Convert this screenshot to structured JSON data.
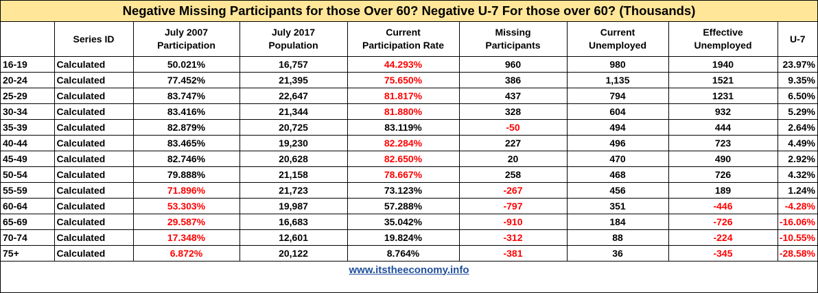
{
  "title": "Negative Missing Participants for those Over 60?  Negative U-7 For those over 60? (Thousands)",
  "colors": {
    "title_bg": "#ffe699",
    "negative": "#ff0000",
    "link": "#1f4e9c"
  },
  "headers": [
    {
      "l1": "",
      "l2": ""
    },
    {
      "l1": "Series ID",
      "l2": ""
    },
    {
      "l1": "July 2007",
      "l2": "Participation"
    },
    {
      "l1": "July 2017",
      "l2": "Population"
    },
    {
      "l1": "Current",
      "l2": "Participation Rate"
    },
    {
      "l1": "Missing",
      "l2": "Participants"
    },
    {
      "l1": "Current",
      "l2": "Unemployed"
    },
    {
      "l1": "Effective",
      "l2": "Unemployed"
    },
    {
      "l1": "U-7",
      "l2": ""
    }
  ],
  "rows": [
    {
      "age": "16-19",
      "series": "Calculated",
      "part2007": "50.021%",
      "pop2017": "16,757",
      "rate": "44.293%",
      "missing": "960",
      "unemp": "980",
      "eff": "1940",
      "u7": "23.97%",
      "red": [
        "rate"
      ]
    },
    {
      "age": "20-24",
      "series": "Calculated",
      "part2007": "77.452%",
      "pop2017": "21,395",
      "rate": "75.650%",
      "missing": "386",
      "unemp": "1,135",
      "eff": "1521",
      "u7": "9.35%",
      "red": [
        "rate"
      ]
    },
    {
      "age": "25-29",
      "series": "Calculated",
      "part2007": "83.747%",
      "pop2017": "22,647",
      "rate": "81.817%",
      "missing": "437",
      "unemp": "794",
      "eff": "1231",
      "u7": "6.50%",
      "red": [
        "rate"
      ]
    },
    {
      "age": "30-34",
      "series": "Calculated",
      "part2007": "83.416%",
      "pop2017": "21,344",
      "rate": "81.880%",
      "missing": "328",
      "unemp": "604",
      "eff": "932",
      "u7": "5.29%",
      "red": [
        "rate"
      ]
    },
    {
      "age": "35-39",
      "series": "Calculated",
      "part2007": "82.879%",
      "pop2017": "20,725",
      "rate": "83.119%",
      "missing": "-50",
      "unemp": "494",
      "eff": "444",
      "u7": "2.64%",
      "red": [
        "missing"
      ]
    },
    {
      "age": "40-44",
      "series": "Calculated",
      "part2007": "83.465%",
      "pop2017": "19,230",
      "rate": "82.284%",
      "missing": "227",
      "unemp": "496",
      "eff": "723",
      "u7": "4.49%",
      "red": [
        "rate"
      ]
    },
    {
      "age": "45-49",
      "series": "Calculated",
      "part2007": "82.746%",
      "pop2017": "20,628",
      "rate": "82.650%",
      "missing": "20",
      "unemp": "470",
      "eff": "490",
      "u7": "2.92%",
      "red": [
        "rate"
      ]
    },
    {
      "age": "50-54",
      "series": "Calculated",
      "part2007": "79.888%",
      "pop2017": "21,158",
      "rate": "78.667%",
      "missing": "258",
      "unemp": "468",
      "eff": "726",
      "u7": "4.32%",
      "red": [
        "rate"
      ]
    },
    {
      "age": "55-59",
      "series": "Calculated",
      "part2007": "71.896%",
      "pop2017": "21,723",
      "rate": "73.123%",
      "missing": "-267",
      "unemp": "456",
      "eff": "189",
      "u7": "1.24%",
      "red": [
        "part2007",
        "missing"
      ]
    },
    {
      "age": "60-64",
      "series": "Calculated",
      "part2007": "53.303%",
      "pop2017": "19,987",
      "rate": "57.288%",
      "missing": "-797",
      "unemp": "351",
      "eff": "-446",
      "u7": "-4.28%",
      "red": [
        "part2007",
        "missing",
        "eff",
        "u7"
      ]
    },
    {
      "age": "65-69",
      "series": "Calculated",
      "part2007": "29.587%",
      "pop2017": "16,683",
      "rate": "35.042%",
      "missing": "-910",
      "unemp": "184",
      "eff": "-726",
      "u7": "-16.06%",
      "red": [
        "part2007",
        "missing",
        "eff",
        "u7"
      ]
    },
    {
      "age": "70-74",
      "series": "Calculated",
      "part2007": "17.348%",
      "pop2017": "12,601",
      "rate": "19.824%",
      "missing": "-312",
      "unemp": "88",
      "eff": "-224",
      "u7": "-10.55%",
      "red": [
        "part2007",
        "missing",
        "eff",
        "u7"
      ]
    },
    {
      "age": "75+",
      "series": "Calculated",
      "part2007": "6.872%",
      "pop2017": "20,122",
      "rate": "8.764%",
      "missing": "-381",
      "unemp": "36",
      "eff": "-345",
      "u7": "-28.58%",
      "red": [
        "part2007",
        "missing",
        "eff",
        "u7"
      ]
    }
  ],
  "footer": {
    "link_text": "www.itstheeconomy.info"
  }
}
